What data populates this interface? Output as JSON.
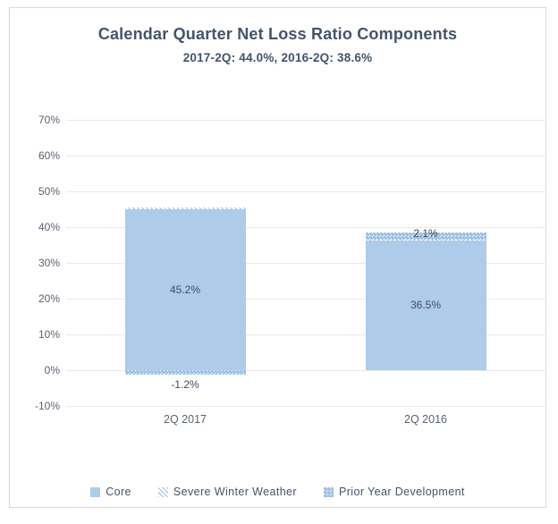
{
  "chart_data": {
    "type": "bar",
    "stacked": true,
    "title": "Calendar Quarter Net Loss Ratio Components",
    "subtitle": "2017-2Q: 44.0%, 2016-2Q: 38.6%",
    "categories": [
      "2Q 2017",
      "2Q 2016"
    ],
    "series": [
      {
        "name": "Core",
        "pattern": "solid",
        "values": [
          45.2,
          36.5
        ],
        "labels": [
          "45.2%",
          "36.5%"
        ]
      },
      {
        "name": "Severe Winter Weather",
        "pattern": "diagonal-hatch",
        "values": [
          0.0,
          0.0
        ],
        "labels": [
          "",
          ""
        ]
      },
      {
        "name": "Prior Year Development",
        "pattern": "dotted",
        "values": [
          -1.2,
          2.1
        ],
        "labels": [
          "-1.2%",
          "2.1%"
        ]
      }
    ],
    "totals": [
      44.0,
      38.6
    ],
    "xlabel": "",
    "ylabel": "",
    "y_ticks": [
      "70%",
      "60%",
      "50%",
      "40%",
      "30%",
      "20%",
      "10%",
      "0%",
      "-10%"
    ],
    "y_tick_values": [
      70,
      60,
      50,
      40,
      30,
      20,
      10,
      0,
      -10
    ],
    "ylim": [
      -10,
      75
    ],
    "grid": true,
    "legend_position": "bottom",
    "colors": {
      "bar_fill": "#aecbea",
      "pattern_blue": "#9fc2e5",
      "title_text": "#44546a",
      "axis_text": "#5a6373",
      "gridline": "#e9e9e9",
      "border": "#d9d9d9"
    }
  }
}
